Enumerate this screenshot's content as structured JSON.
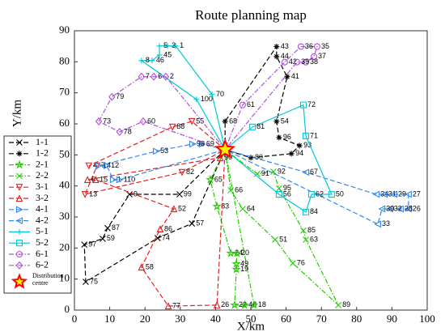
{
  "chart_data": {
    "type": "route",
    "title": "Route planning map",
    "x_label": "X/km",
    "y_label": "Y/km",
    "xlim": [
      0,
      100
    ],
    "ylim": [
      0,
      90
    ],
    "xticks": [
      0,
      10,
      20,
      30,
      40,
      50,
      60,
      70,
      80,
      90,
      100
    ],
    "yticks": [
      0,
      10,
      20,
      30,
      40,
      50,
      60,
      70,
      80,
      90
    ],
    "legend": "left",
    "depot": {
      "name": "Distribution centre",
      "x": 42.7,
      "y": 51.7,
      "color": "#ff0000"
    },
    "series": [
      {
        "name": "1-1",
        "color": "#000000",
        "line_style": "dashed",
        "marker": "x",
        "labels": [
          null,
          "99",
          "9",
          "87",
          "59",
          "97",
          "75",
          "74",
          "57",
          null
        ],
        "x": [
          42.7,
          29.8,
          15.6,
          9.4,
          8.0,
          2.8,
          3.2,
          23.6,
          33.3,
          42.7
        ],
        "y": [
          51.7,
          37.3,
          37.3,
          26.4,
          23.0,
          21.1,
          9.1,
          23.2,
          27.9,
          51.7
        ]
      },
      {
        "name": "1-2",
        "color": "#000000",
        "line_style": "dashed",
        "marker": "asterisk",
        "labels": [
          null,
          "68",
          "43",
          "44",
          "41",
          "54",
          "96",
          "93",
          "94",
          "80",
          null
        ],
        "x": [
          42.7,
          42.7,
          57.3,
          57.3,
          60.3,
          57.3,
          58.0,
          63.8,
          61.5,
          50.0,
          42.7
        ],
        "y": [
          51.7,
          60.8,
          84.9,
          81.7,
          75.2,
          60.8,
          55.6,
          53.0,
          50.4,
          49.1,
          51.7
        ]
      },
      {
        "name": "2-1",
        "color": "#22cc00",
        "line_style": "dashdot",
        "marker": "star",
        "labels": [
          null,
          "65",
          "83",
          "24",
          "20",
          "49",
          "19",
          "22",
          "48",
          "18",
          null
        ],
        "x": [
          42.7,
          38.5,
          40.4,
          44.3,
          46.1,
          45.9,
          45.9,
          45.4,
          48.2,
          50.9,
          42.7
        ],
        "y": [
          51.7,
          42.0,
          33.4,
          18.3,
          18.3,
          14.9,
          13.1,
          1.6,
          1.6,
          1.6,
          51.7
        ]
      },
      {
        "name": "2-2",
        "color": "#22cc00",
        "line_style": "dashdot",
        "marker": "x",
        "labels": [
          null,
          "66",
          "64",
          "51",
          "76",
          "89",
          "63",
          "85",
          "95",
          "92",
          "91",
          null
        ],
        "x": [
          42.7,
          44.3,
          47.7,
          56.9,
          61.9,
          74.8,
          65.6,
          64.9,
          58.0,
          56.4,
          51.8,
          42.7
        ],
        "y": [
          51.7,
          38.6,
          32.6,
          22.7,
          15.1,
          1.6,
          22.7,
          25.6,
          39.2,
          44.6,
          43.9,
          51.7
        ]
      },
      {
        "name": "3-1",
        "color": "#e02020",
        "line_style": "dashed",
        "marker": "triangle-down",
        "labels": [
          null,
          "55",
          "88",
          "4",
          "7",
          "13",
          "82",
          null
        ],
        "x": [
          42.7,
          33.3,
          27.8,
          4.1,
          6.4,
          3.0,
          30.5,
          42.7
        ],
        "y": [
          51.7,
          60.8,
          59.0,
          46.5,
          46.5,
          37.3,
          44.4,
          51.7
        ]
      },
      {
        "name": "3-2",
        "color": "#e02020",
        "line_style": "dashed",
        "marker": "triangle-up",
        "labels": [
          null,
          "90",
          "6",
          "15",
          "52",
          "86",
          "58",
          "77",
          "26",
          null
        ],
        "x": [
          42.7,
          41.3,
          3.7,
          6.0,
          28.2,
          24.3,
          19.0,
          26.6,
          40.4,
          42.7
        ],
        "y": [
          51.7,
          49.1,
          42.0,
          42.0,
          32.6,
          26.1,
          13.8,
          1.3,
          1.6,
          51.7
        ]
      },
      {
        "name": "4-1",
        "color": "#3388ee",
        "line_style": "dashed",
        "marker": "triangle-right",
        "labels": [
          null,
          "69",
          "98",
          "53",
          "14",
          "12",
          "1",
          "110",
          null
        ],
        "x": [
          42.7,
          36.2,
          33.5,
          23.2,
          6.9,
          9.2,
          11.0,
          12.8,
          42.7
        ],
        "y": [
          51.7,
          53.5,
          53.5,
          51.2,
          46.5,
          46.5,
          42.0,
          42.0,
          51.7
        ]
      },
      {
        "name": "4-2",
        "color": "#3388ee",
        "line_style": "dashed",
        "marker": "triangle-left",
        "labels": [
          null,
          "67",
          "34",
          "31",
          "29",
          "27",
          "26",
          "28",
          "32",
          "30",
          "33",
          null
        ],
        "x": [
          42.7,
          65.6,
          85.6,
          87.8,
          90.6,
          94.7,
          94.7,
          92.4,
          89.4,
          87.2,
          86.0,
          42.7
        ],
        "y": [
          51.7,
          44.4,
          37.3,
          37.3,
          37.3,
          37.3,
          32.6,
          32.6,
          32.6,
          32.6,
          27.7,
          51.7
        ]
      },
      {
        "name": "5-1",
        "color": "#00c8d8",
        "line_style": "solid",
        "marker": "plus",
        "labels": [
          null,
          "100",
          "8",
          "46",
          "45",
          "5",
          "3",
          "1",
          "70",
          null
        ],
        "x": [
          42.7,
          34.6,
          19.0,
          22.0,
          24.1,
          24.1,
          26.4,
          28.7,
          39.0,
          42.7
        ],
        "y": [
          51.7,
          67.9,
          80.4,
          80.4,
          82.2,
          85.1,
          85.1,
          85.1,
          69.5,
          51.7
        ]
      },
      {
        "name": "5-2",
        "color": "#00c8d8",
        "line_style": "solid",
        "marker": "square",
        "labels": [
          null,
          "81",
          "72",
          "71",
          "50",
          "62",
          "84",
          "56",
          null
        ],
        "x": [
          42.7,
          50.5,
          64.9,
          65.6,
          72.9,
          67.2,
          65.6,
          58.0,
          42.7
        ],
        "y": [
          51.7,
          59.0,
          66.1,
          56.1,
          37.3,
          37.3,
          31.6,
          37.3,
          51.7
        ]
      },
      {
        "name": "6-1",
        "color": "#b050e0",
        "line_style": "dashdot",
        "marker": "circle",
        "labels": [
          null,
          "61",
          "42",
          "36",
          "35",
          "37",
          "38",
          "39",
          null
        ],
        "x": [
          42.7,
          47.7,
          59.6,
          64.2,
          68.8,
          67.9,
          65.6,
          63.1,
          42.7
        ],
        "y": [
          51.7,
          66.1,
          79.9,
          84.9,
          84.9,
          81.7,
          79.9,
          79.9,
          51.7
        ]
      },
      {
        "name": "6-2",
        "color": "#b050e0",
        "line_style": "dashdot",
        "marker": "diamond",
        "labels": [
          null,
          "2",
          "6",
          "7",
          "79",
          "73",
          "78",
          "60",
          null
        ],
        "x": [
          42.7,
          25.9,
          22.5,
          19.0,
          10.6,
          6.9,
          12.8,
          19.5,
          42.7
        ],
        "y": [
          51.7,
          75.2,
          75.2,
          75.2,
          68.7,
          60.8,
          57.4,
          60.8,
          51.7
        ]
      }
    ]
  }
}
